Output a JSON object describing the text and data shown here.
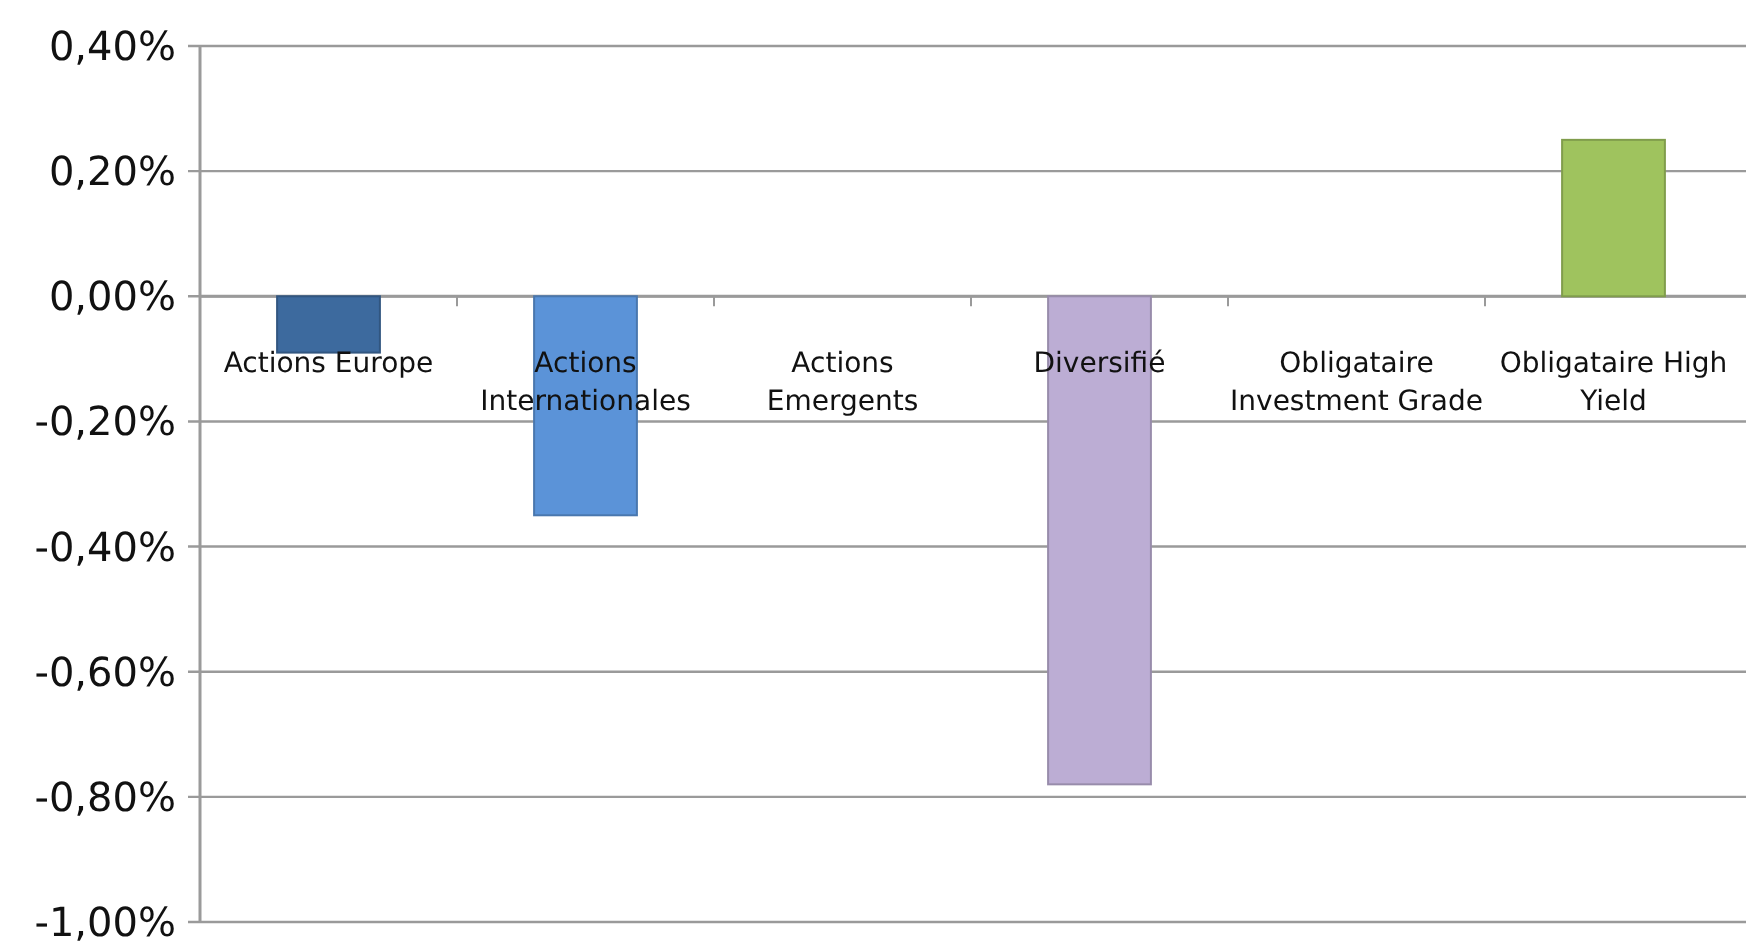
{
  "chart_data": {
    "type": "bar",
    "categories": [
      "Actions Europe",
      "Actions Internationales",
      "Actions Emergents",
      "Diversifié",
      "Obligataire Investment Grade",
      "Obligataire High Yield"
    ],
    "values": [
      -0.09,
      -0.35,
      0,
      -0.78,
      0,
      0.25
    ],
    "colors": [
      "#3d6a9e",
      "#5b93d8",
      "#4f81bd",
      "#bcadd4",
      "#8064a2",
      "#9fc35e"
    ],
    "ylim": [
      -1.0,
      0.4
    ],
    "yticks": [
      {
        "value": 0.4,
        "label": "0,40%"
      },
      {
        "value": 0.2,
        "label": "0,20%"
      },
      {
        "value": 0,
        "label": "0,00%"
      },
      {
        "value": -0.2,
        "label": "-0,20%"
      },
      {
        "value": -0.4,
        "label": "-0,40%"
      },
      {
        "value": -0.6,
        "label": "-0,60%"
      },
      {
        "value": -0.8,
        "label": "-0,80%"
      },
      {
        "value": -1.0,
        "label": "-1,00%"
      }
    ],
    "grid": "y"
  }
}
